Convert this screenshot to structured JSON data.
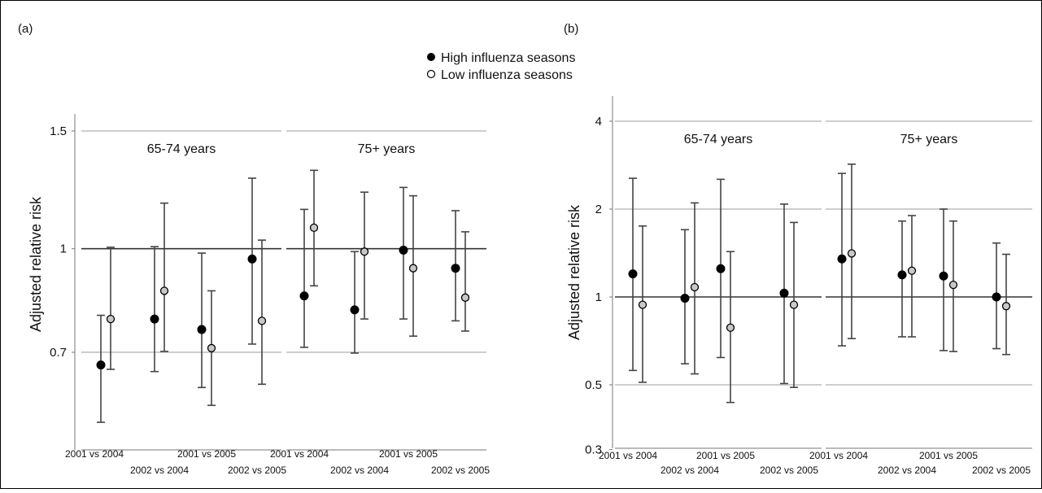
{
  "legend": {
    "items": [
      {
        "label": "High influenza seasons",
        "marker": "filled-circle",
        "color": "#000000"
      },
      {
        "label": "Low influenza seasons",
        "marker": "open-circle",
        "color": "#ffffff"
      }
    ]
  },
  "colors": {
    "high": "#000000",
    "low_fill": "#c8c8c8",
    "grid": "#bdbdbd",
    "reference": "#333333",
    "errorbar": "#444444"
  },
  "chart_data": [
    {
      "panel_label": "(a)",
      "type": "scatter",
      "scale": "log",
      "ylabel": "Adjusted relative risk",
      "ylim": [
        0.52,
        1.55
      ],
      "yticks": [
        0.7,
        1,
        1.5
      ],
      "ytick_labels": [
        "0.7",
        "1",
        "1.5"
      ],
      "reference_line": 1,
      "grid": true,
      "facets": [
        {
          "label": "65-74 years",
          "xtick_labels": [
            "2001 vs 2004",
            "2002 vs 2004",
            "2001 vs 2005",
            "2002 vs 2005"
          ],
          "points": [
            {
              "comparison": "2001 vs 2004",
              "season": "High influenza seasons",
              "value": 0.67,
              "lower": 0.55,
              "upper": 0.795
            },
            {
              "comparison": "2001 vs 2004",
              "season": "Low influenza seasons",
              "value": 0.785,
              "lower": 0.66,
              "upper": 1.005
            },
            {
              "comparison": "2002 vs 2004",
              "season": "High influenza seasons",
              "value": 0.785,
              "lower": 0.655,
              "upper": 1.007
            },
            {
              "comparison": "2002 vs 2004",
              "season": "Low influenza seasons",
              "value": 0.865,
              "lower": 0.702,
              "upper": 1.17
            },
            {
              "comparison": "2001 vs 2005",
              "season": "High influenza seasons",
              "value": 0.757,
              "lower": 0.62,
              "upper": 0.985
            },
            {
              "comparison": "2001 vs 2005",
              "season": "Low influenza seasons",
              "value": 0.71,
              "lower": 0.583,
              "upper": 0.865
            },
            {
              "comparison": "2002 vs 2005",
              "season": "High influenza seasons",
              "value": 0.965,
              "lower": 0.72,
              "upper": 1.275
            },
            {
              "comparison": "2002 vs 2005",
              "season": "Low influenza seasons",
              "value": 0.78,
              "lower": 0.627,
              "upper": 1.03
            }
          ]
        },
        {
          "label": "75+ years",
          "xtick_labels": [
            "2001 vs 2004",
            "2002 vs 2004",
            "2001 vs 2005",
            "2002 vs 2005"
          ],
          "points": [
            {
              "comparison": "2001 vs 2004",
              "season": "High influenza seasons",
              "value": 0.85,
              "lower": 0.712,
              "upper": 1.145
            },
            {
              "comparison": "2001 vs 2004",
              "season": "Low influenza seasons",
              "value": 1.075,
              "lower": 0.88,
              "upper": 1.31
            },
            {
              "comparison": "2002 vs 2004",
              "season": "High influenza seasons",
              "value": 0.81,
              "lower": 0.698,
              "upper": 0.99
            },
            {
              "comparison": "2002 vs 2004",
              "season": "Low influenza seasons",
              "value": 0.99,
              "lower": 0.785,
              "upper": 1.215
            },
            {
              "comparison": "2001 vs 2005",
              "season": "High influenza seasons",
              "value": 0.995,
              "lower": 0.785,
              "upper": 1.235
            },
            {
              "comparison": "2001 vs 2005",
              "season": "Low influenza seasons",
              "value": 0.935,
              "lower": 0.74,
              "upper": 1.2
            },
            {
              "comparison": "2002 vs 2005",
              "season": "High influenza seasons",
              "value": 0.935,
              "lower": 0.78,
              "upper": 1.14
            },
            {
              "comparison": "2002 vs 2005",
              "season": "Low influenza seasons",
              "value": 0.845,
              "lower": 0.753,
              "upper": 1.06
            }
          ]
        }
      ]
    },
    {
      "panel_label": "(b)",
      "type": "scatter",
      "scale": "log",
      "ylabel": "Adjusted relative risk",
      "ylim": [
        0.3,
        4.8
      ],
      "yticks": [
        0.3,
        0.5,
        1,
        2,
        4
      ],
      "ytick_labels": [
        "0.3",
        "0.5",
        "1",
        "2",
        "4"
      ],
      "reference_line": 1,
      "grid": true,
      "facets": [
        {
          "label": "65-74 years",
          "xtick_labels": [
            "2001 vs 2004",
            "2002 vs 2004",
            "2001 vs 2005",
            "2002 vs 2005"
          ],
          "points": [
            {
              "comparison": "2001 vs 2004",
              "season": "High influenza seasons",
              "value": 1.2,
              "lower": 0.56,
              "upper": 2.55
            },
            {
              "comparison": "2001 vs 2004",
              "season": "Low influenza seasons",
              "value": 0.94,
              "lower": 0.51,
              "upper": 1.75
            },
            {
              "comparison": "2002 vs 2004",
              "season": "High influenza seasons",
              "value": 0.99,
              "lower": 0.59,
              "upper": 1.7
            },
            {
              "comparison": "2002 vs 2004",
              "season": "Low influenza seasons",
              "value": 1.08,
              "lower": 0.545,
              "upper": 2.1
            },
            {
              "comparison": "2001 vs 2005",
              "season": "High influenza seasons",
              "value": 1.25,
              "lower": 0.62,
              "upper": 2.53
            },
            {
              "comparison": "2001 vs 2005",
              "season": "Low influenza seasons",
              "value": 0.785,
              "lower": 0.435,
              "upper": 1.43
            },
            {
              "comparison": "2002 vs 2005",
              "season": "High influenza seasons",
              "value": 1.03,
              "lower": 0.505,
              "upper": 2.08
            },
            {
              "comparison": "2002 vs 2005",
              "season": "Low influenza seasons",
              "value": 0.94,
              "lower": 0.49,
              "upper": 1.8
            }
          ]
        },
        {
          "label": "75+ years",
          "xtick_labels": [
            "2001 vs 2004",
            "2002 vs 2004",
            "2001 vs 2005",
            "2002 vs 2005"
          ],
          "points": [
            {
              "comparison": "2001 vs 2004",
              "season": "High influenza seasons",
              "value": 1.35,
              "lower": 0.68,
              "upper": 2.65
            },
            {
              "comparison": "2001 vs 2004",
              "season": "Low influenza seasons",
              "value": 1.41,
              "lower": 0.72,
              "upper": 2.85
            },
            {
              "comparison": "2002 vs 2004",
              "season": "High influenza seasons",
              "value": 1.19,
              "lower": 0.73,
              "upper": 1.82
            },
            {
              "comparison": "2002 vs 2004",
              "season": "Low influenza seasons",
              "value": 1.23,
              "lower": 0.73,
              "upper": 1.9
            },
            {
              "comparison": "2001 vs 2005",
              "season": "High influenza seasons",
              "value": 1.18,
              "lower": 0.655,
              "upper": 2.0
            },
            {
              "comparison": "2001 vs 2005",
              "season": "Low influenza seasons",
              "value": 1.1,
              "lower": 0.65,
              "upper": 1.82
            },
            {
              "comparison": "2002 vs 2005",
              "season": "High influenza seasons",
              "value": 1.0,
              "lower": 0.665,
              "upper": 1.53
            },
            {
              "comparison": "2002 vs 2005",
              "season": "Low influenza seasons",
              "value": 0.93,
              "lower": 0.635,
              "upper": 1.4
            }
          ]
        }
      ]
    }
  ]
}
